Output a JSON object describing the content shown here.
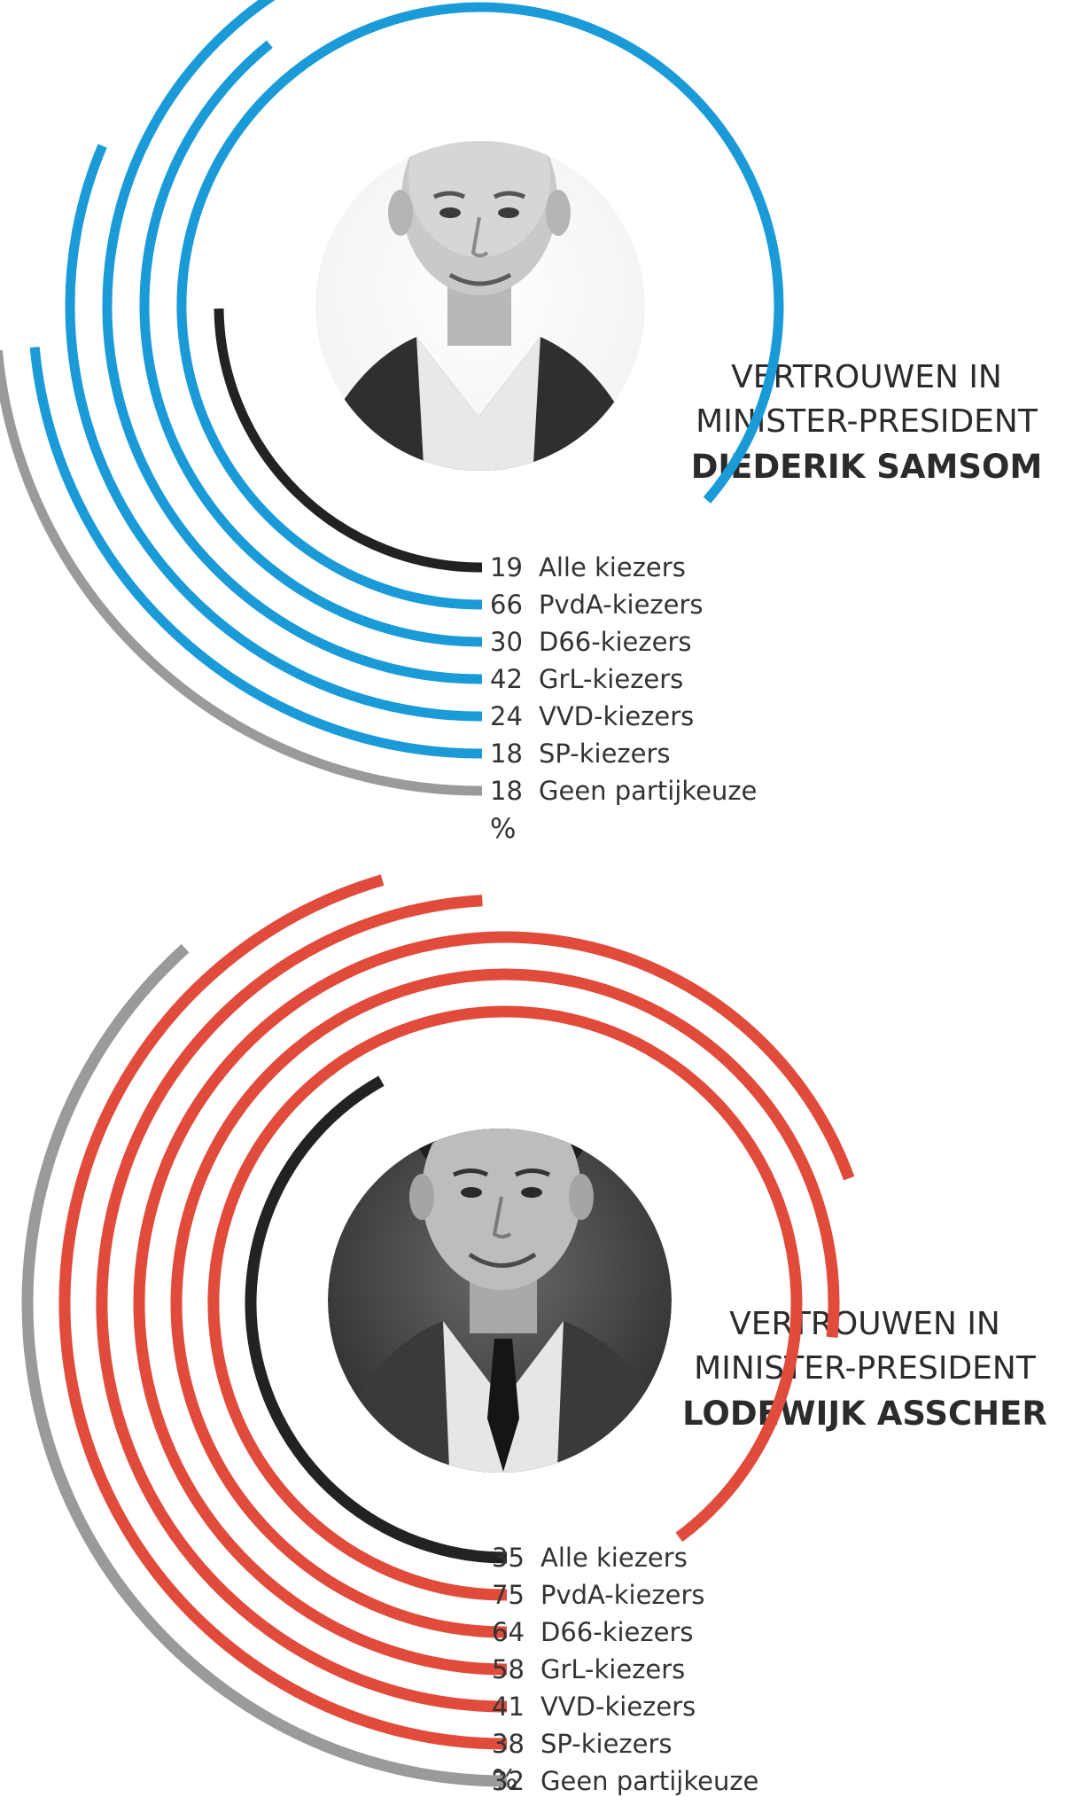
{
  "colors": {
    "all_voters": "#222222",
    "no_party": "#9a9a9a",
    "samsom_accent": "#1a9bd7",
    "asscher_accent": "#e04b3c"
  },
  "chart_data": [
    {
      "type": "radial-bar",
      "title_line1": "VERTROUWEN IN",
      "title_line2": "MINISTER-PRESIDENT",
      "title_name": "DIEDERIK SAMSOM",
      "unit": "%",
      "accent": "samsom_accent",
      "photo_icon": "portrait-photo",
      "categories": [
        "Alle kiezers",
        "PvdA-kiezers",
        "D66-kiezers",
        "GrL-kiezers",
        "VVD-kiezers",
        "SP-kiezers",
        "Geen partijkeuze"
      ],
      "values": [
        19,
        66,
        30,
        42,
        24,
        18,
        18
      ],
      "value_labels": [
        "19",
        "66",
        "30",
        "42",
        "24",
        "18",
        "18"
      ]
    },
    {
      "type": "radial-bar",
      "title_line1": "VERTROUWEN IN",
      "title_line2": "MINISTER-PRESIDENT",
      "title_name": "LODEWIJK ASSCHER",
      "unit": "%",
      "accent": "asscher_accent",
      "photo_icon": "portrait-photo",
      "categories": [
        "Alle kiezers",
        "PvdA-kiezers",
        "D66-kiezers",
        "GrL-kiezers",
        "VVD-kiezers",
        "SP-kiezers",
        "Geen partijkeuze"
      ],
      "values": [
        35,
        75,
        64,
        58,
        41,
        38,
        32
      ],
      "value_labels": [
        "35",
        "75",
        "64",
        "58",
        "41",
        "38",
        "32"
      ]
    }
  ]
}
